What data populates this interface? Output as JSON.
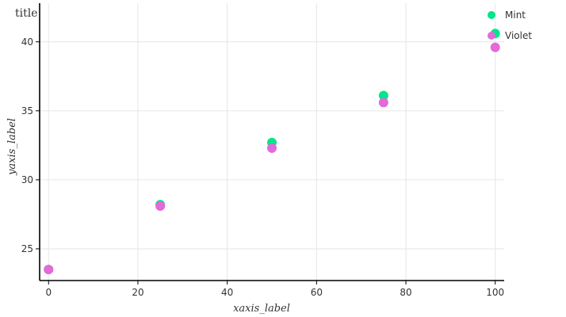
{
  "chart_data": {
    "type": "scatter",
    "title": "title",
    "xlabel": "xaxis_label",
    "ylabel": "yaxis_label",
    "xlim": [
      -2,
      102
    ],
    "ylim": [
      22.7,
      42.8
    ],
    "xticks": [
      0,
      20,
      40,
      60,
      80,
      100
    ],
    "yticks": [
      25,
      30,
      35,
      40
    ],
    "grid": true,
    "legend_position": "right",
    "series": [
      {
        "name": "Mint",
        "color": "#00e68a",
        "x": [
          0,
          25,
          50,
          75,
          100
        ],
        "y": [
          23.5,
          28.2,
          32.7,
          36.1,
          40.6
        ]
      },
      {
        "name": "Violet",
        "color": "#e26ad9",
        "x": [
          0,
          25,
          50,
          75,
          100
        ],
        "y": [
          23.5,
          28.1,
          32.3,
          35.6,
          39.6
        ]
      }
    ]
  }
}
